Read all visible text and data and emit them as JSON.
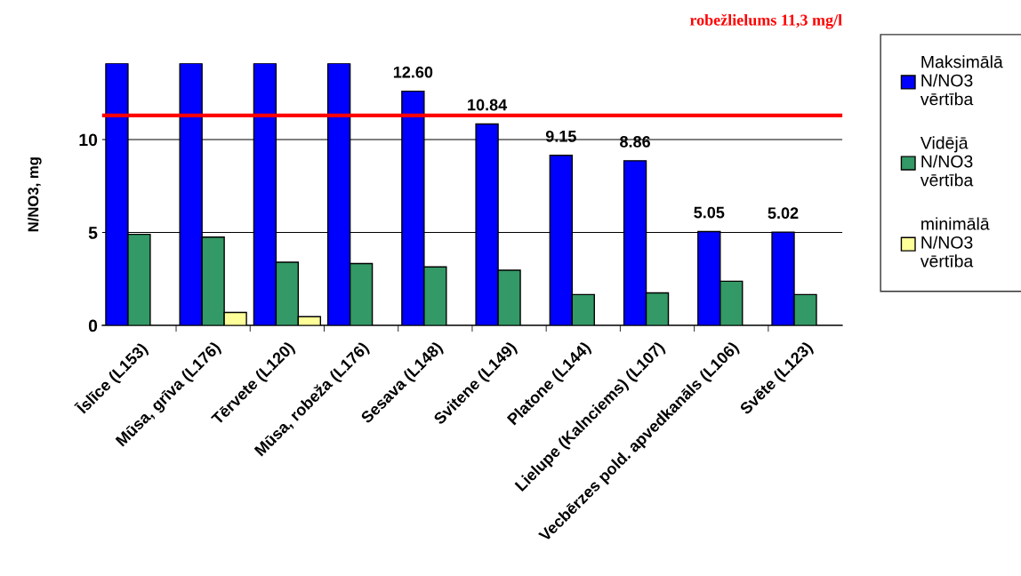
{
  "chart_data": {
    "type": "bar",
    "ylabel": "N/NO3, mg",
    "categories": [
      "Īslīce (L153)",
      "Mūsa, grīva (L176)",
      "Tērvete (L120)",
      "Mūsa, robeža (L176)",
      "Sesava (L148)",
      "Svitene (L149)",
      "Platone (L144)",
      "Lielupe (Kalnciems) (L107)",
      "Vecbērzes pold. apvedkanāls (L106)",
      "Svēte (L123)"
    ],
    "series": [
      {
        "name": "Maksimālā N/NO3 vērtība",
        "color": "#0000ff",
        "values": [
          14.1,
          14.1,
          14.1,
          14.1,
          12.6,
          10.84,
          9.15,
          8.86,
          5.05,
          5.02
        ],
        "value_labels": [
          null,
          null,
          null,
          null,
          "12.60",
          "10.84",
          "9.15",
          "8.86",
          "5.05",
          "5.02"
        ]
      },
      {
        "name": "Vidējā N/NO3 vērtība",
        "color": "#339966",
        "values": [
          4.9,
          4.75,
          3.4,
          3.33,
          3.15,
          2.97,
          1.66,
          1.75,
          2.38,
          1.66
        ]
      },
      {
        "name": "minimālā N/NO3 vērtība",
        "color": "#ffff99",
        "values": [
          null,
          0.7,
          0.47,
          null,
          null,
          null,
          null,
          null,
          null,
          null
        ]
      }
    ],
    "ylim": [
      0,
      14.1
    ],
    "yticks": [
      0,
      5,
      10
    ],
    "grid": "y",
    "legend": "right",
    "ref_lines": [
      {
        "axis": "y",
        "value": 11.3,
        "label": "robežlielums 11,3 mg/l",
        "color": "#ff0000"
      }
    ]
  }
}
